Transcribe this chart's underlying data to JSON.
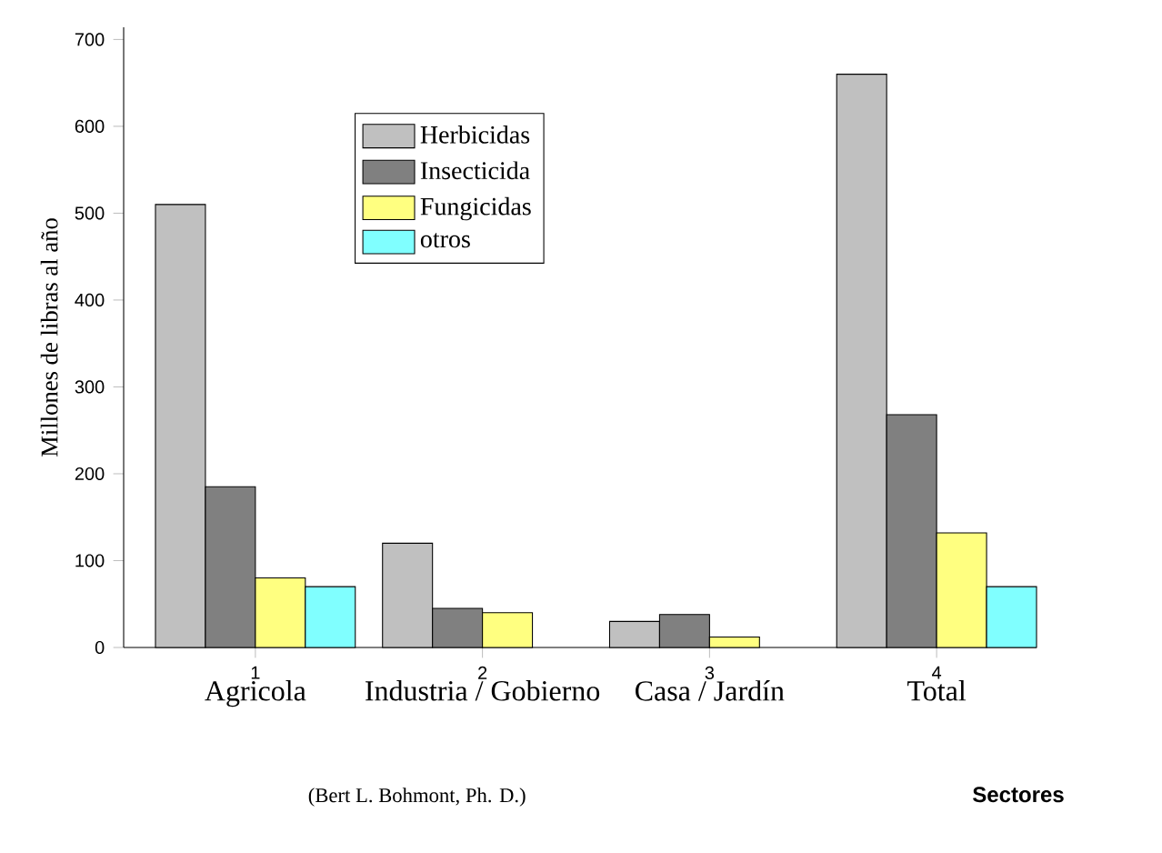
{
  "chart_data": {
    "type": "bar",
    "x": [
      1,
      2,
      3,
      4
    ],
    "xlim": [
      0.42,
      4.44
    ],
    "xticks": [
      1,
      2,
      3,
      4
    ],
    "ylim": [
      0,
      714
    ],
    "yticks": [
      0,
      100,
      200,
      300,
      400,
      500,
      600,
      700
    ],
    "ylabel": "Millones de libras al año",
    "xlabel": "Sectores",
    "series": [
      {
        "name": "Herbicidas",
        "color": "#c0c0c0",
        "values": [
          510,
          120,
          30,
          660
        ]
      },
      {
        "name": "Insecticida",
        "color": "#808080",
        "values": [
          185,
          45,
          38,
          268
        ]
      },
      {
        "name": "Fungicidas",
        "color": "#ffff80",
        "values": [
          80,
          40,
          12,
          132
        ]
      },
      {
        "name": "otros",
        "color": "#80ffff",
        "values": [
          70,
          null,
          null,
          70
        ]
      }
    ],
    "annotations": [
      "Agricola",
      "Industria / Gobierno",
      "Casa / Jardín",
      "Total",
      "(Bert L. Bohmont, Ph. D.)"
    ],
    "legend": "top left",
    "grid": false
  }
}
